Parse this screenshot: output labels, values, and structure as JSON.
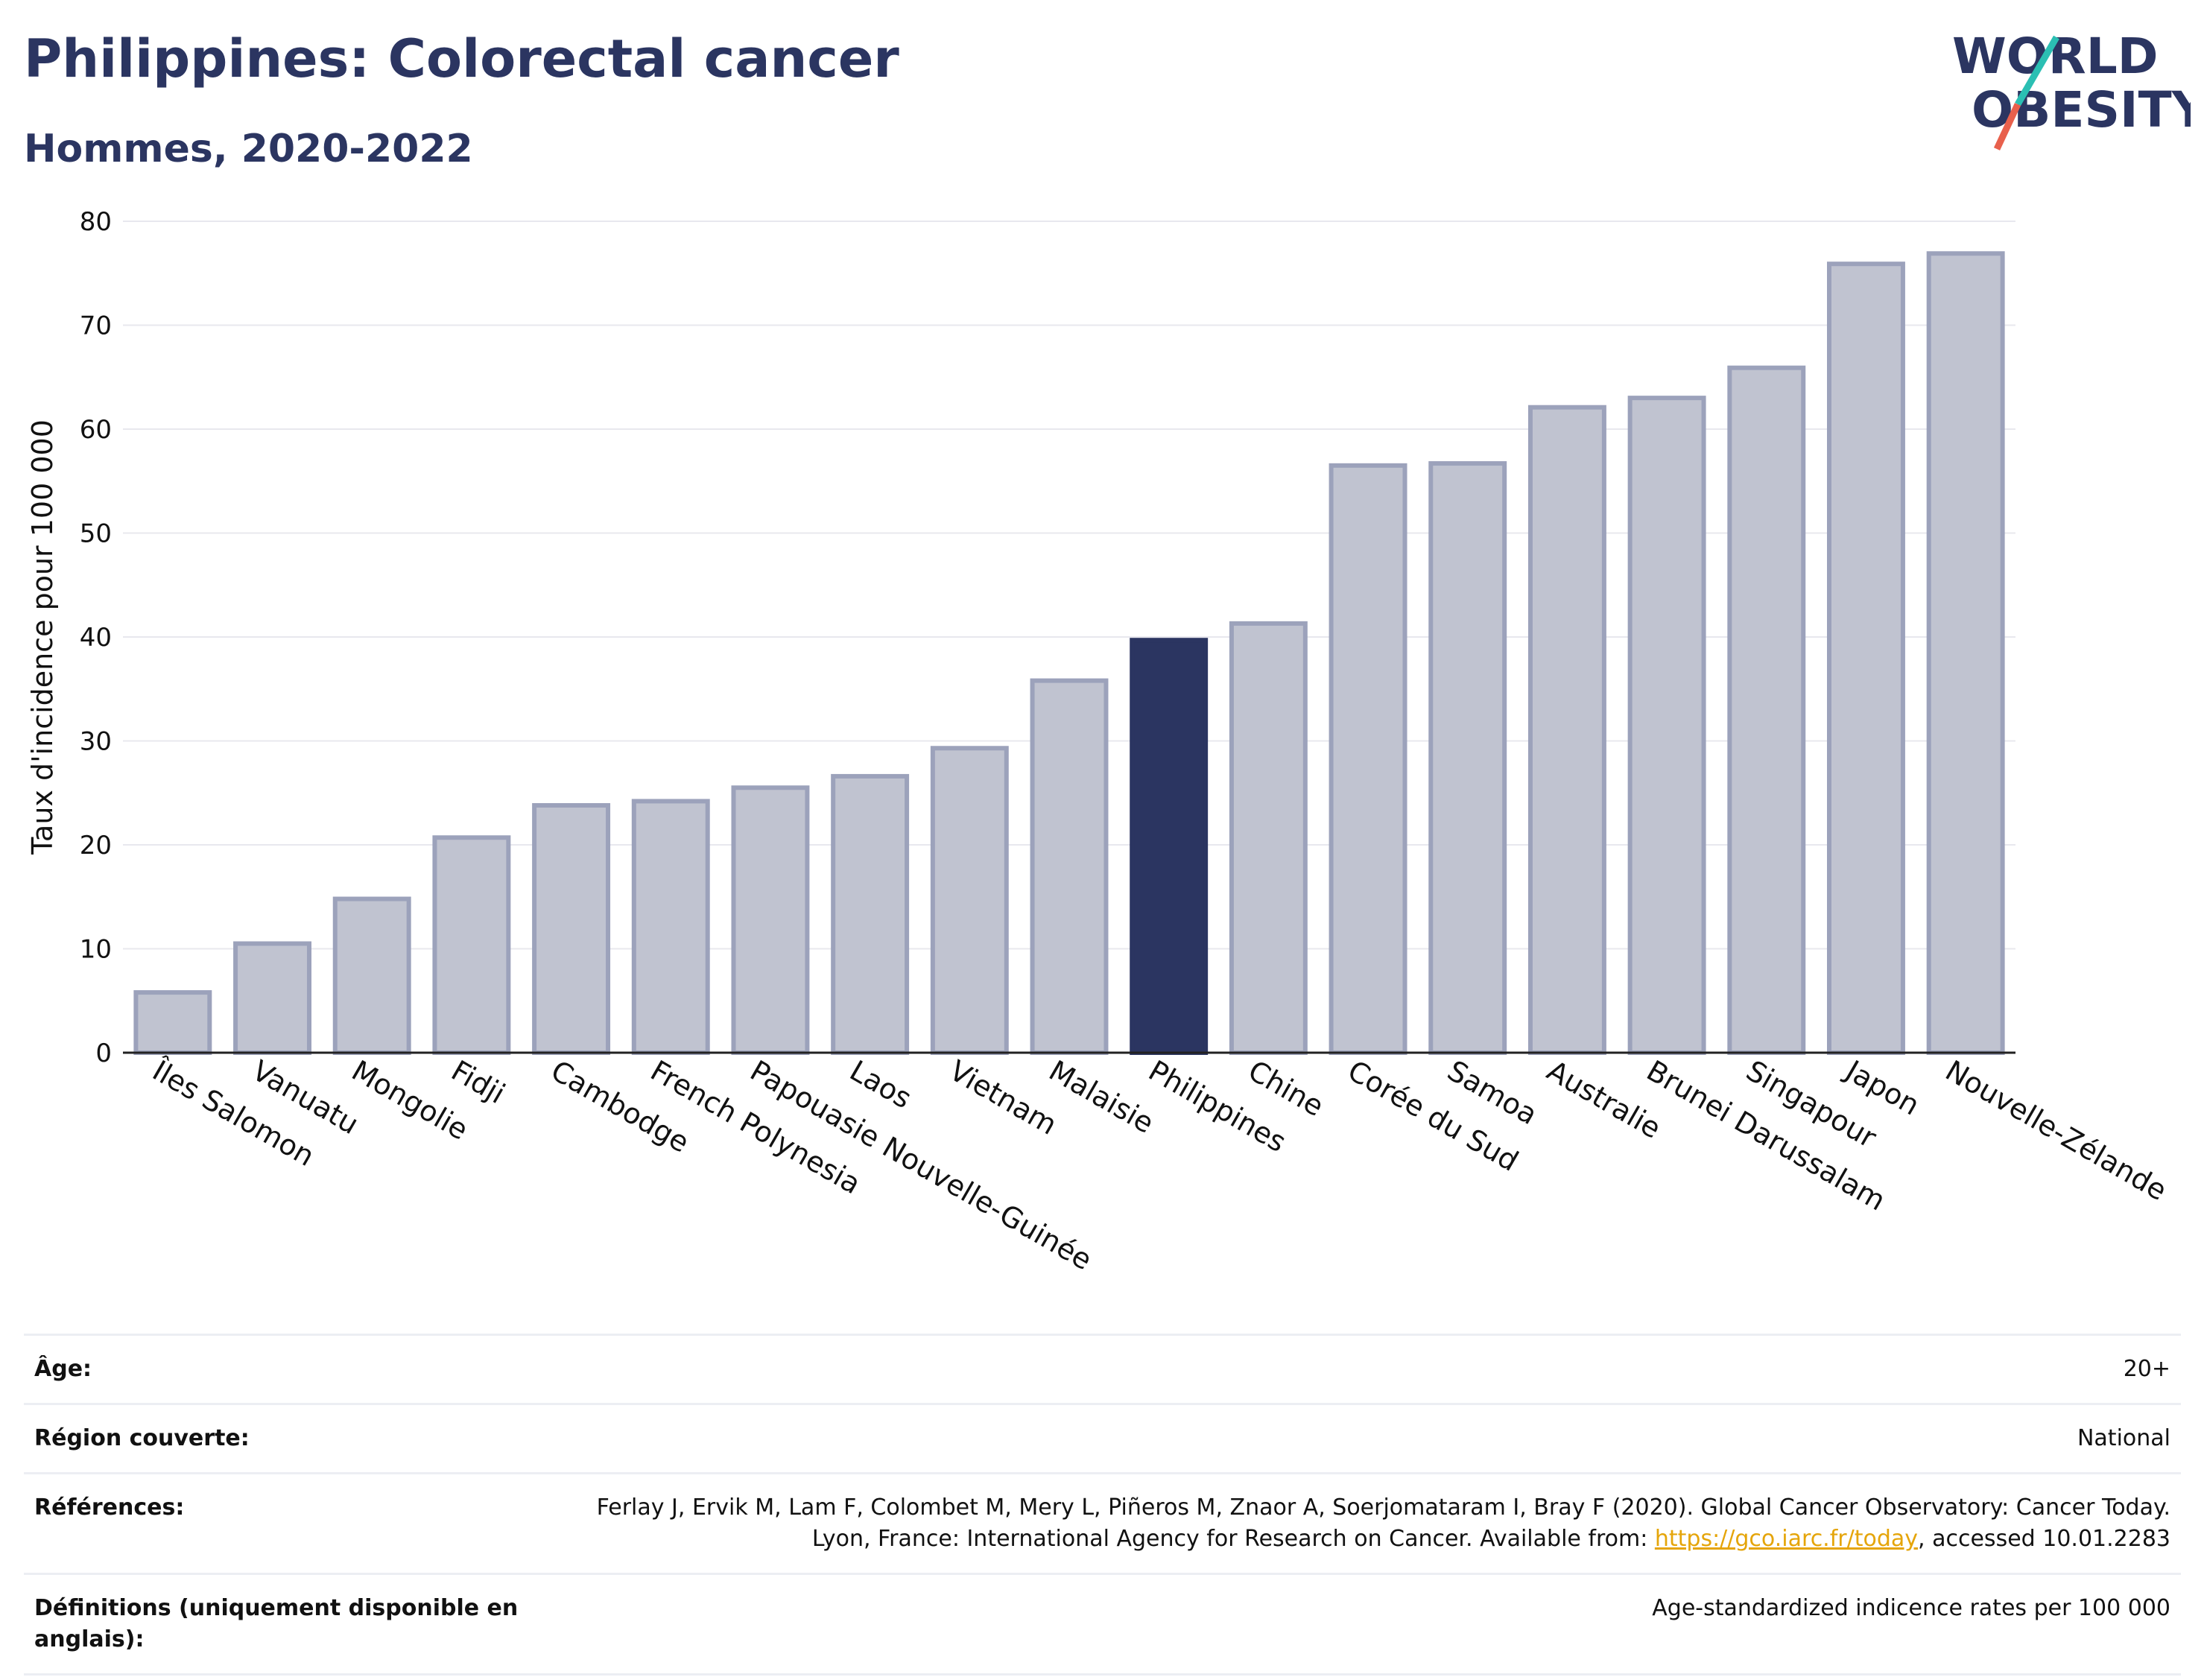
{
  "header": {
    "title": "Philippines: Colorectal cancer",
    "subtitle": "Hommes, 2020-2022",
    "logo_line1": "WORLD",
    "logo_line2": "OBESITY"
  },
  "colors": {
    "highlight": "#2b3561",
    "bar_fill": "#c0c3d0",
    "bar_stroke": "#9ca2bb",
    "grid": "#e8e8ee",
    "logo_teal": "#2bbfb3",
    "logo_red": "#e8604c"
  },
  "chart_data": {
    "type": "bar",
    "categories": [
      "Îles Salomon",
      "Vanuatu",
      "Mongolie",
      "Fidji",
      "Cambodge",
      "French Polynesia",
      "Papouasie Nouvelle-Guinée",
      "Laos",
      "Vietnam",
      "Malaisie",
      "Philippines",
      "Chine",
      "Corée du Sud",
      "Samoa",
      "Australie",
      "Brunei Darussalam",
      "Singapour",
      "Japon",
      "Nouvelle-Zélande"
    ],
    "values": [
      5.8,
      10.5,
      14.8,
      20.7,
      23.8,
      24.2,
      25.5,
      26.6,
      29.3,
      35.8,
      39.7,
      41.3,
      56.5,
      56.7,
      62.1,
      63.0,
      65.9,
      75.9,
      76.9
    ],
    "highlight_category": "Philippines",
    "ylabel": "Taux d'incidence pour 100 000",
    "xlabel": "",
    "ylim": [
      0,
      80
    ],
    "yticks": [
      0,
      10,
      20,
      30,
      40,
      50,
      60,
      70,
      80
    ],
    "grid": true
  },
  "meta": {
    "age_label": "Âge:",
    "age_value": "20+",
    "region_label": "Région couverte:",
    "region_value": "National",
    "refs_label": "Références:",
    "refs_text_before": "Ferlay J, Ervik M, Lam F, Colombet M, Mery L, Piñeros M, Znaor A, Soerjomataram I, Bray F (2020). Global Cancer Observatory: Cancer Today. Lyon, France: International Agency for Research on Cancer. Available from: ",
    "refs_link": "https://gco.iarc.fr/today",
    "refs_text_after": ", accessed 10.01.2283",
    "defs_label": "Définitions (uniquement disponible en anglais):",
    "defs_value": "Age-standardized indicence rates per 100 000"
  }
}
